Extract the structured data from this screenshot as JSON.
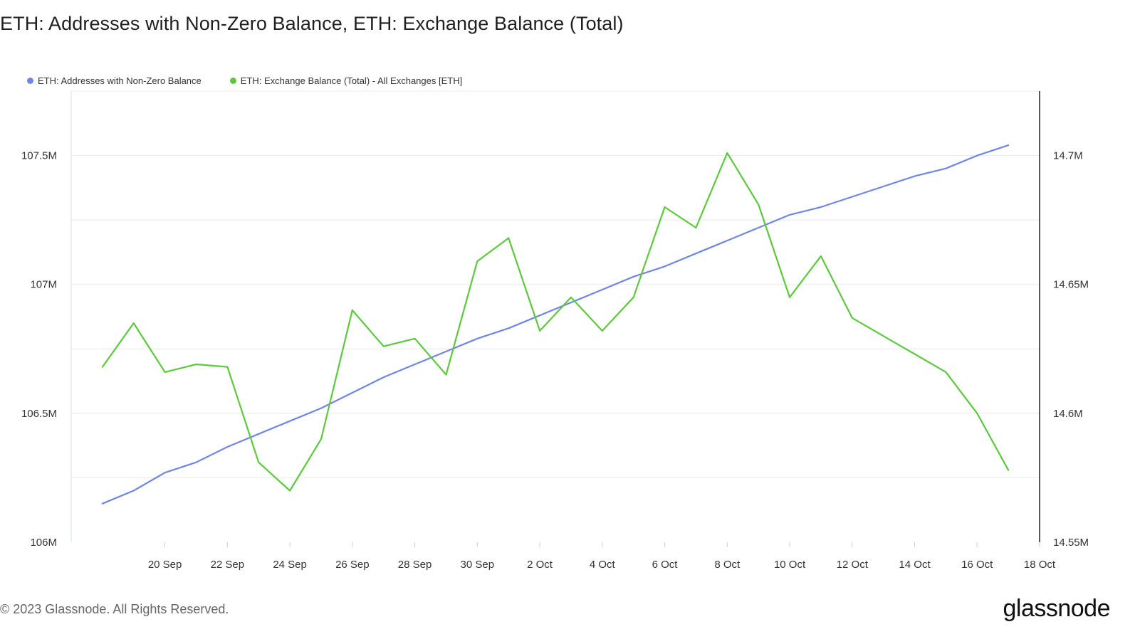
{
  "title": "ETH: Addresses with Non-Zero Balance, ETH: Exchange Balance (Total)",
  "footer": {
    "copyright": "© 2023 Glassnode. All Rights Reserved.",
    "logo_text": "glassnode"
  },
  "colors": {
    "addresses": "#6f86e6",
    "exchange": "#5cc83c",
    "grid": "#e9e9e9",
    "axis": "#222222"
  },
  "chart_data": {
    "type": "line",
    "title": "ETH: Addresses with Non-Zero Balance, ETH: Exchange Balance (Total)",
    "grid": true,
    "legend_position": "top-left",
    "x_range": [
      "2023-09-17",
      "2023-10-18"
    ],
    "x_ticks": [
      "20 Sep",
      "22 Sep",
      "24 Sep",
      "26 Sep",
      "28 Sep",
      "30 Sep",
      "2 Oct",
      "4 Oct",
      "6 Oct",
      "8 Oct",
      "10 Oct",
      "12 Oct",
      "14 Oct",
      "16 Oct",
      "18 Oct"
    ],
    "x_tick_dates": [
      "2023-09-20",
      "2023-09-22",
      "2023-09-24",
      "2023-09-26",
      "2023-09-28",
      "2023-09-30",
      "2023-10-02",
      "2023-10-04",
      "2023-10-06",
      "2023-10-08",
      "2023-10-10",
      "2023-10-12",
      "2023-10-14",
      "2023-10-16",
      "2023-10-18"
    ],
    "y_left": {
      "min": 106000000,
      "max": 107750000,
      "ticks": [
        106000000,
        106500000,
        107000000,
        107500000
      ],
      "tick_labels": [
        "106M",
        "106.5M",
        "107M",
        "107.5M"
      ]
    },
    "y_right": {
      "min": 14550000,
      "max": 14725000,
      "ticks": [
        14550000,
        14600000,
        14650000,
        14700000
      ],
      "tick_labels": [
        "14.55M",
        "14.6M",
        "14.65M",
        "14.7M"
      ]
    },
    "series": [
      {
        "name": "ETH: Addresses with Non-Zero Balance",
        "axis": "left",
        "dates": [
          "2023-09-18",
          "2023-09-19",
          "2023-09-20",
          "2023-09-21",
          "2023-09-22",
          "2023-09-23",
          "2023-09-24",
          "2023-09-25",
          "2023-09-26",
          "2023-09-27",
          "2023-09-28",
          "2023-09-29",
          "2023-09-30",
          "2023-10-01",
          "2023-10-02",
          "2023-10-03",
          "2023-10-04",
          "2023-10-05",
          "2023-10-06",
          "2023-10-07",
          "2023-10-08",
          "2023-10-09",
          "2023-10-10",
          "2023-10-11",
          "2023-10-12",
          "2023-10-13",
          "2023-10-14",
          "2023-10-15",
          "2023-10-16",
          "2023-10-17"
        ],
        "values": [
          106150000,
          106200000,
          106270000,
          106310000,
          106370000,
          106420000,
          106470000,
          106520000,
          106580000,
          106640000,
          106690000,
          106740000,
          106790000,
          106830000,
          106880000,
          106930000,
          106980000,
          107030000,
          107070000,
          107120000,
          107170000,
          107220000,
          107270000,
          107300000,
          107340000,
          107380000,
          107420000,
          107450000,
          107500000,
          107540000
        ]
      },
      {
        "name": "ETH: Exchange Balance (Total) - All Exchanges [ETH]",
        "axis": "right",
        "dates": [
          "2023-09-18",
          "2023-09-19",
          "2023-09-20",
          "2023-09-21",
          "2023-09-22",
          "2023-09-23",
          "2023-09-24",
          "2023-09-25",
          "2023-09-26",
          "2023-09-27",
          "2023-09-28",
          "2023-09-29",
          "2023-09-30",
          "2023-10-01",
          "2023-10-02",
          "2023-10-03",
          "2023-10-04",
          "2023-10-05",
          "2023-10-06",
          "2023-10-07",
          "2023-10-08",
          "2023-10-09",
          "2023-10-10",
          "2023-10-11",
          "2023-10-12",
          "2023-10-13",
          "2023-10-14",
          "2023-10-15",
          "2023-10-16",
          "2023-10-17"
        ],
        "values": [
          14618000,
          14635000,
          14616000,
          14619000,
          14618000,
          14581000,
          14570000,
          14590000,
          14640000,
          14626000,
          14629000,
          14615000,
          14659000,
          14668000,
          14632000,
          14645000,
          14632000,
          14645000,
          14680000,
          14672000,
          14701000,
          14681000,
          14645000,
          14661000,
          14637000,
          14630000,
          14623000,
          14616000,
          14600000,
          14578000
        ]
      }
    ]
  }
}
